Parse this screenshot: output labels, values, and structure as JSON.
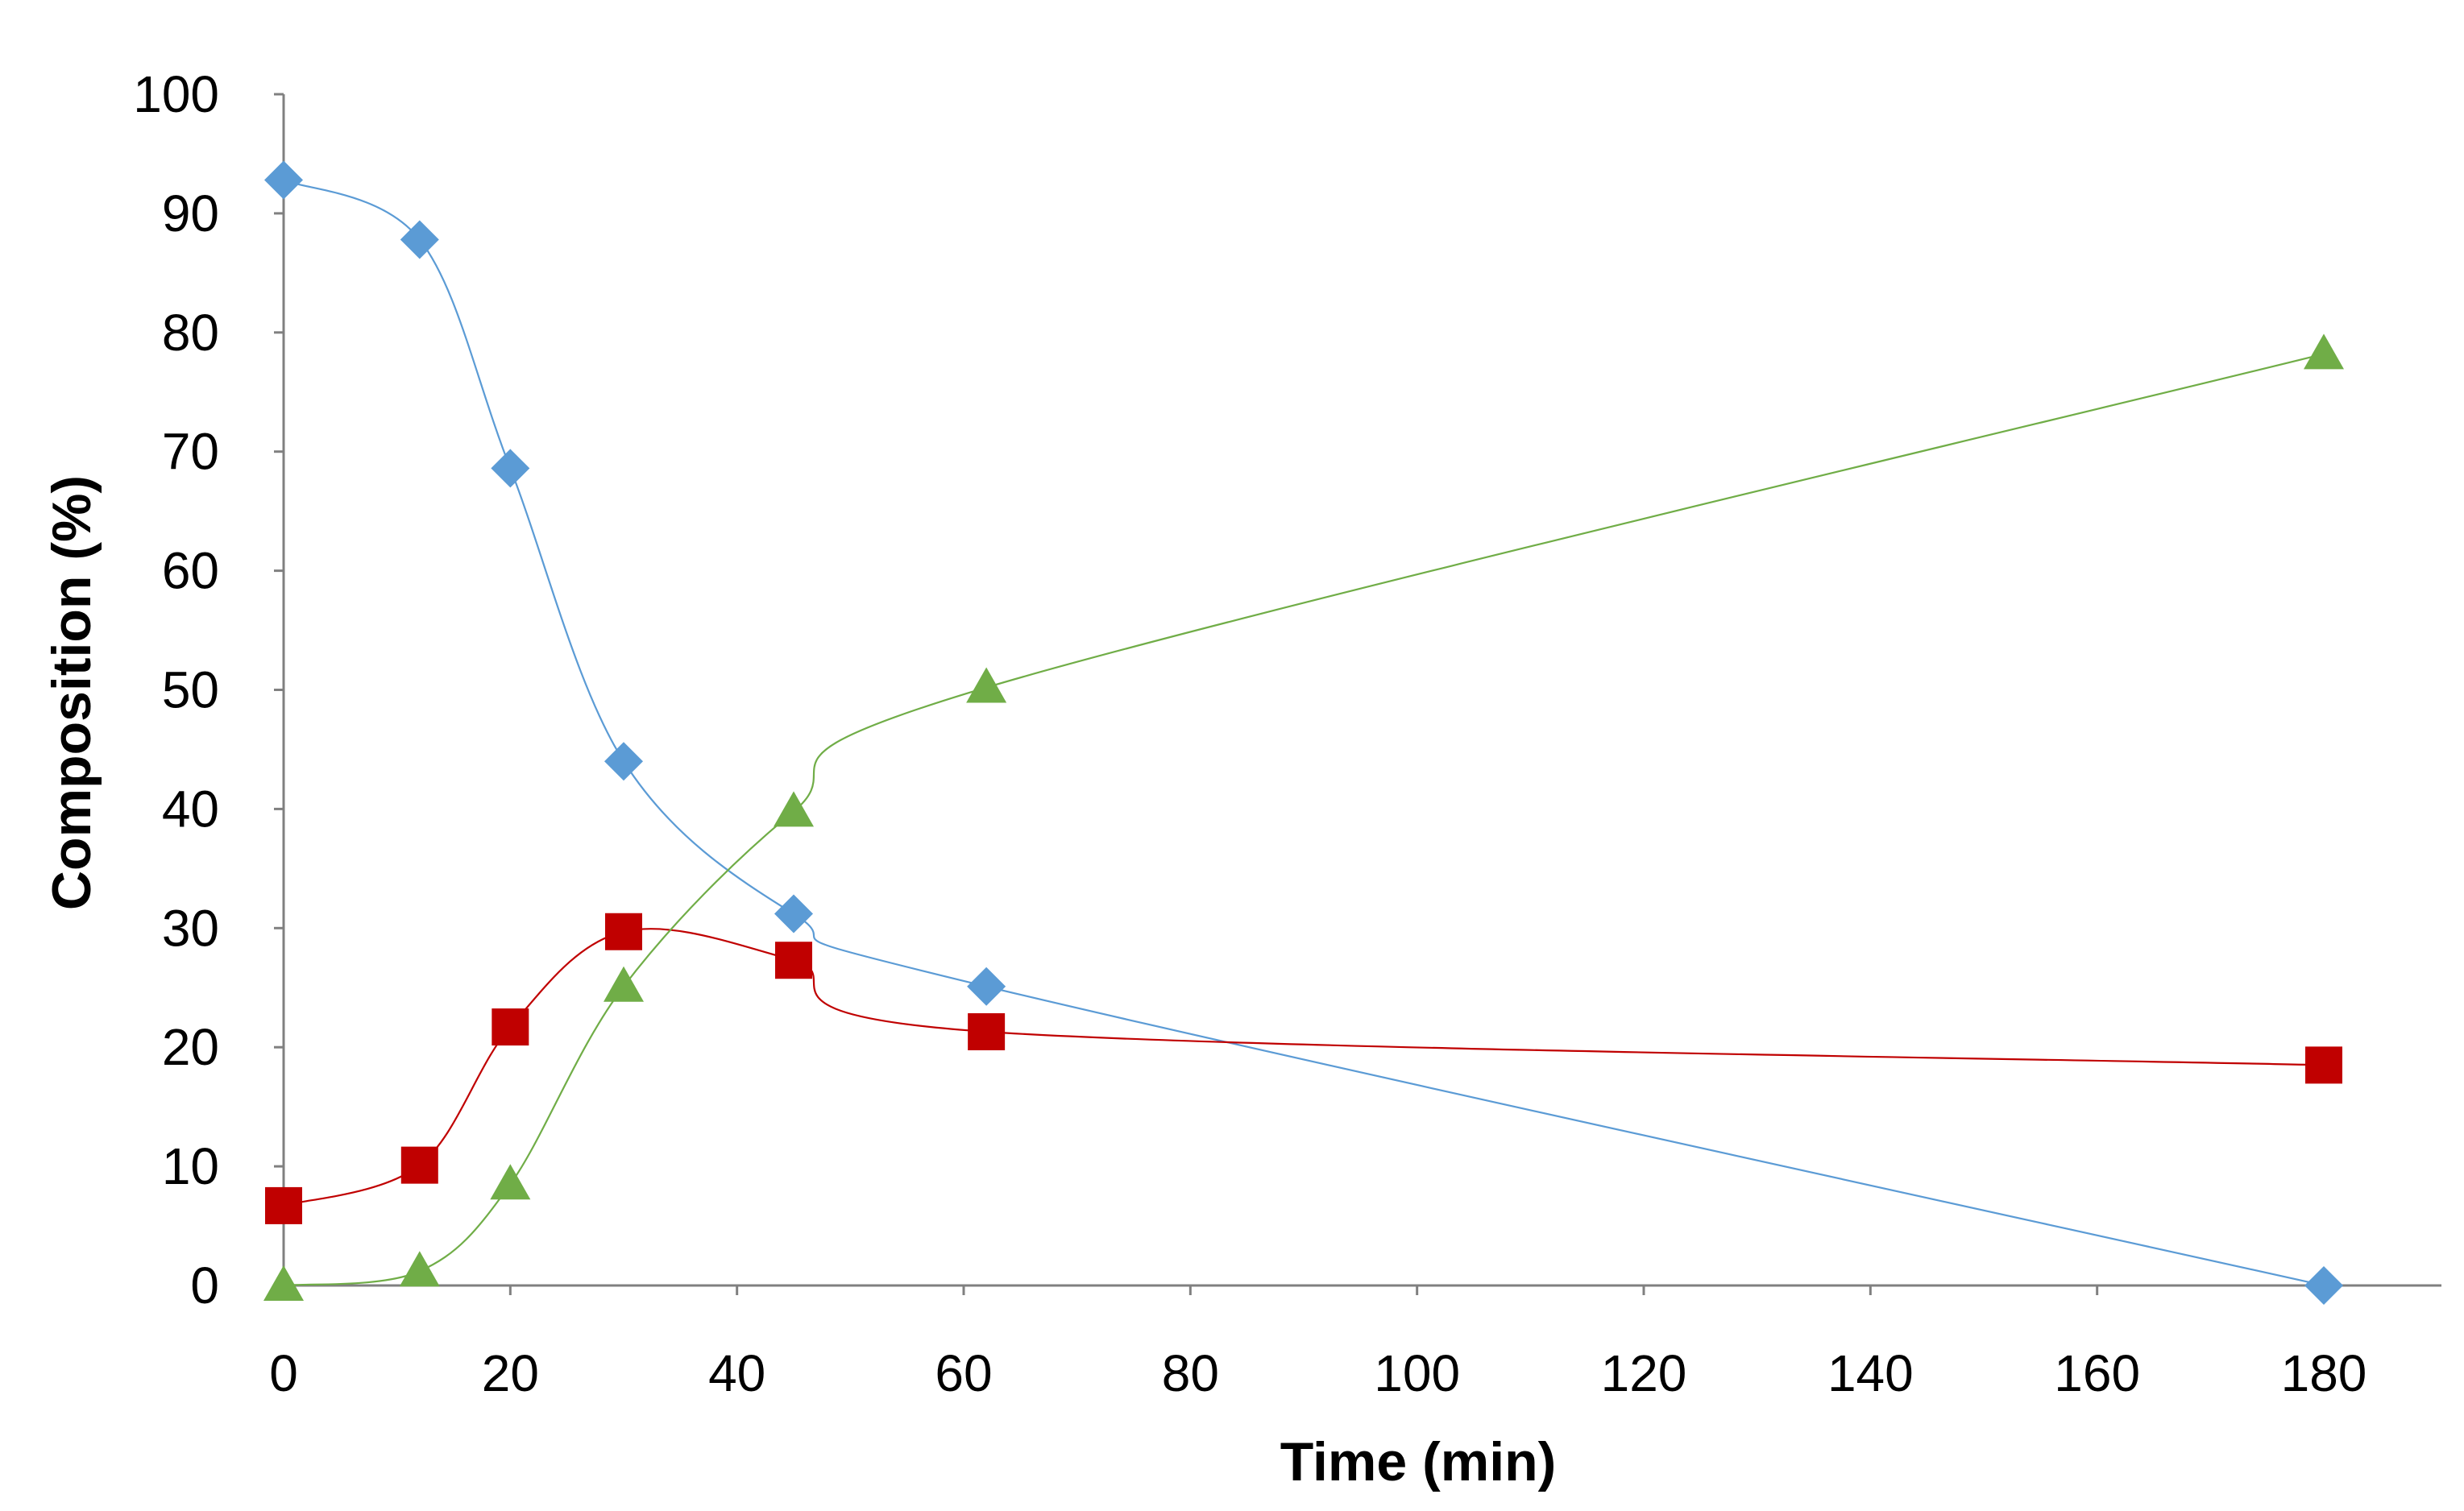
{
  "chart_data": {
    "type": "scatter",
    "title": "",
    "xlabel": "Time (min)",
    "ylabel": "Composition (%)",
    "xlim": [
      0,
      190
    ],
    "ylim": [
      0,
      100
    ],
    "x_ticks": [
      0,
      20,
      40,
      60,
      80,
      100,
      120,
      140,
      160,
      180
    ],
    "y_ticks": [
      0,
      10,
      20,
      30,
      40,
      50,
      60,
      70,
      80,
      90,
      100
    ],
    "grid": false,
    "legend": "none",
    "line_style": "smoothed",
    "series": [
      {
        "name": "diamond-series",
        "marker": "diamond",
        "color": "#5B9BD5",
        "x": [
          0,
          12,
          20,
          30,
          45,
          62,
          180
        ],
        "y": [
          92.8,
          87.8,
          68.6,
          44.0,
          31.2,
          25.1,
          0.0
        ]
      },
      {
        "name": "square-series",
        "marker": "square",
        "color": "#C00000",
        "x": [
          0,
          12,
          20,
          30,
          45,
          62,
          180
        ],
        "y": [
          6.7,
          10.1,
          21.7,
          29.7,
          27.3,
          21.3,
          18.5
        ]
      },
      {
        "name": "triangle-series",
        "marker": "triangle",
        "color": "#70AD47",
        "x": [
          0,
          12,
          20,
          30,
          45,
          62,
          180
        ],
        "y": [
          0.0,
          1.2,
          8.5,
          25.1,
          39.8,
          50.2,
          78.2
        ]
      }
    ]
  }
}
